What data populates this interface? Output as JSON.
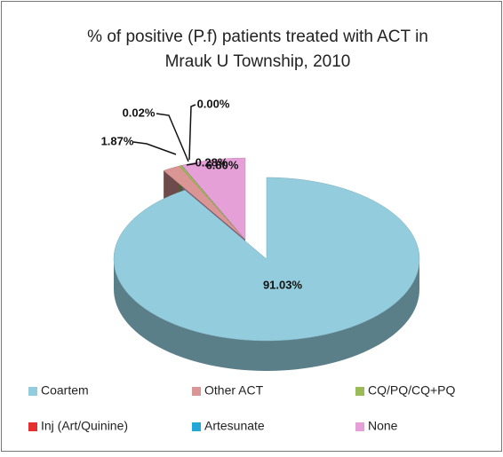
{
  "chart_data": {
    "type": "pie",
    "title": [
      "% of positive (P.f) patients treated with ACT in",
      "Mrauk U Township, 2010"
    ],
    "categories": [
      "Coartem",
      "Other ACT",
      "CQ/PQ/CQ+PQ",
      "Inj (Art/Quinine)",
      "Artesunate",
      "None"
    ],
    "values": [
      91.03,
      1.87,
      0.28,
      0.02,
      0.0,
      6.8
    ],
    "value_labels": [
      "91.03%",
      "1.87%",
      "0.28%",
      "0.02%",
      "0.00%",
      "6.80%"
    ],
    "colors": [
      "#93cddd",
      "#d99694",
      "#9bbb59",
      "#e53030",
      "#22a8d8",
      "#e6a0d8"
    ],
    "legend": "bottom"
  }
}
